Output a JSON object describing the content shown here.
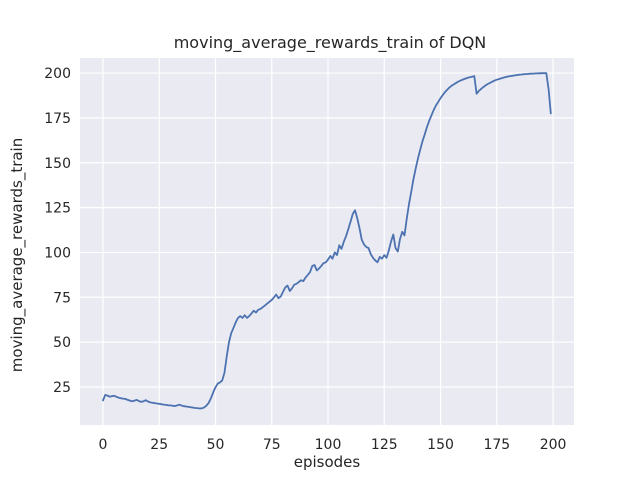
{
  "chart_data": {
    "type": "line",
    "title": "moving_average_rewards_train of DQN",
    "xlabel": "episodes",
    "ylabel": "moving_average_rewards_train",
    "x_ticks": [
      0,
      25,
      50,
      75,
      100,
      125,
      150,
      175,
      200
    ],
    "y_ticks": [
      25,
      50,
      75,
      100,
      125,
      150,
      175,
      200
    ],
    "xlim": [
      -10.2,
      209.3
    ],
    "ylim": [
      3.8,
      208.4
    ],
    "grid": true,
    "legend_position": "none",
    "colors": {
      "line": "#4C72B0",
      "plot_background": "#EAEAF2",
      "grid": "#FFFFFF",
      "figure_background": "#FFFFFF",
      "text": "#262626"
    },
    "series": [
      {
        "name": "DQN",
        "x_start": 0,
        "x_step": 1,
        "values": [
          17.5,
          20.5,
          20.2,
          19.6,
          19.9,
          20.1,
          19.5,
          19.0,
          18.7,
          18.5,
          18.3,
          17.8,
          17.4,
          17.0,
          17.4,
          17.8,
          17.1,
          16.7,
          17.0,
          17.6,
          16.9,
          16.4,
          16.2,
          16.0,
          15.8,
          15.6,
          15.4,
          15.2,
          15.0,
          14.8,
          14.7,
          14.5,
          14.4,
          14.7,
          15.1,
          14.6,
          14.3,
          14.1,
          13.9,
          13.7,
          13.5,
          13.3,
          13.2,
          13.0,
          13.1,
          13.6,
          14.6,
          16.2,
          18.8,
          22.0,
          24.8,
          26.8,
          27.6,
          28.6,
          33.0,
          42.0,
          50.0,
          55.0,
          58.0,
          61.0,
          63.5,
          64.5,
          63.5,
          65.0,
          63.5,
          64.5,
          66.0,
          67.5,
          66.5,
          68.0,
          68.5,
          69.5,
          70.5,
          71.5,
          72.5,
          73.5,
          75.0,
          76.5,
          74.5,
          75.5,
          78.0,
          80.5,
          81.5,
          78.5,
          80.0,
          82.0,
          82.5,
          83.5,
          84.5,
          84.0,
          86.0,
          87.5,
          89.0,
          92.5,
          93.0,
          90.0,
          91.0,
          92.5,
          94.0,
          94.5,
          96.0,
          98.0,
          96.5,
          100.0,
          98.5,
          104.0,
          102.0,
          106.0,
          109.0,
          113.0,
          117.0,
          121.5,
          123.5,
          119.0,
          113.5,
          107.0,
          104.5,
          103.0,
          102.5,
          99.0,
          97.0,
          95.5,
          94.5,
          97.5,
          96.5,
          98.5,
          97.0,
          101.0,
          106.0,
          110.0,
          102.5,
          100.5,
          107.5,
          111.5,
          109.5,
          119.0,
          127.0,
          134.0,
          141.0,
          147.0,
          152.5,
          157.5,
          162.0,
          166.0,
          170.0,
          173.5,
          176.5,
          179.5,
          182.0,
          184.0,
          186.0,
          187.8,
          189.4,
          190.8,
          192.0,
          193.0,
          193.8,
          194.6,
          195.3,
          195.9,
          196.4,
          196.9,
          197.3,
          197.7,
          198.0,
          198.3,
          188.5,
          190.0,
          191.2,
          192.2,
          193.1,
          193.9,
          194.6,
          195.2,
          195.8,
          196.3,
          196.7,
          197.1,
          197.5,
          197.8,
          198.1,
          198.3,
          198.5,
          198.7,
          198.9,
          199.1,
          199.2,
          199.35,
          199.45,
          199.55,
          199.65,
          199.7,
          199.75,
          199.8,
          199.85,
          199.9,
          199.92,
          199.93,
          191.0,
          177.5
        ]
      }
    ]
  }
}
